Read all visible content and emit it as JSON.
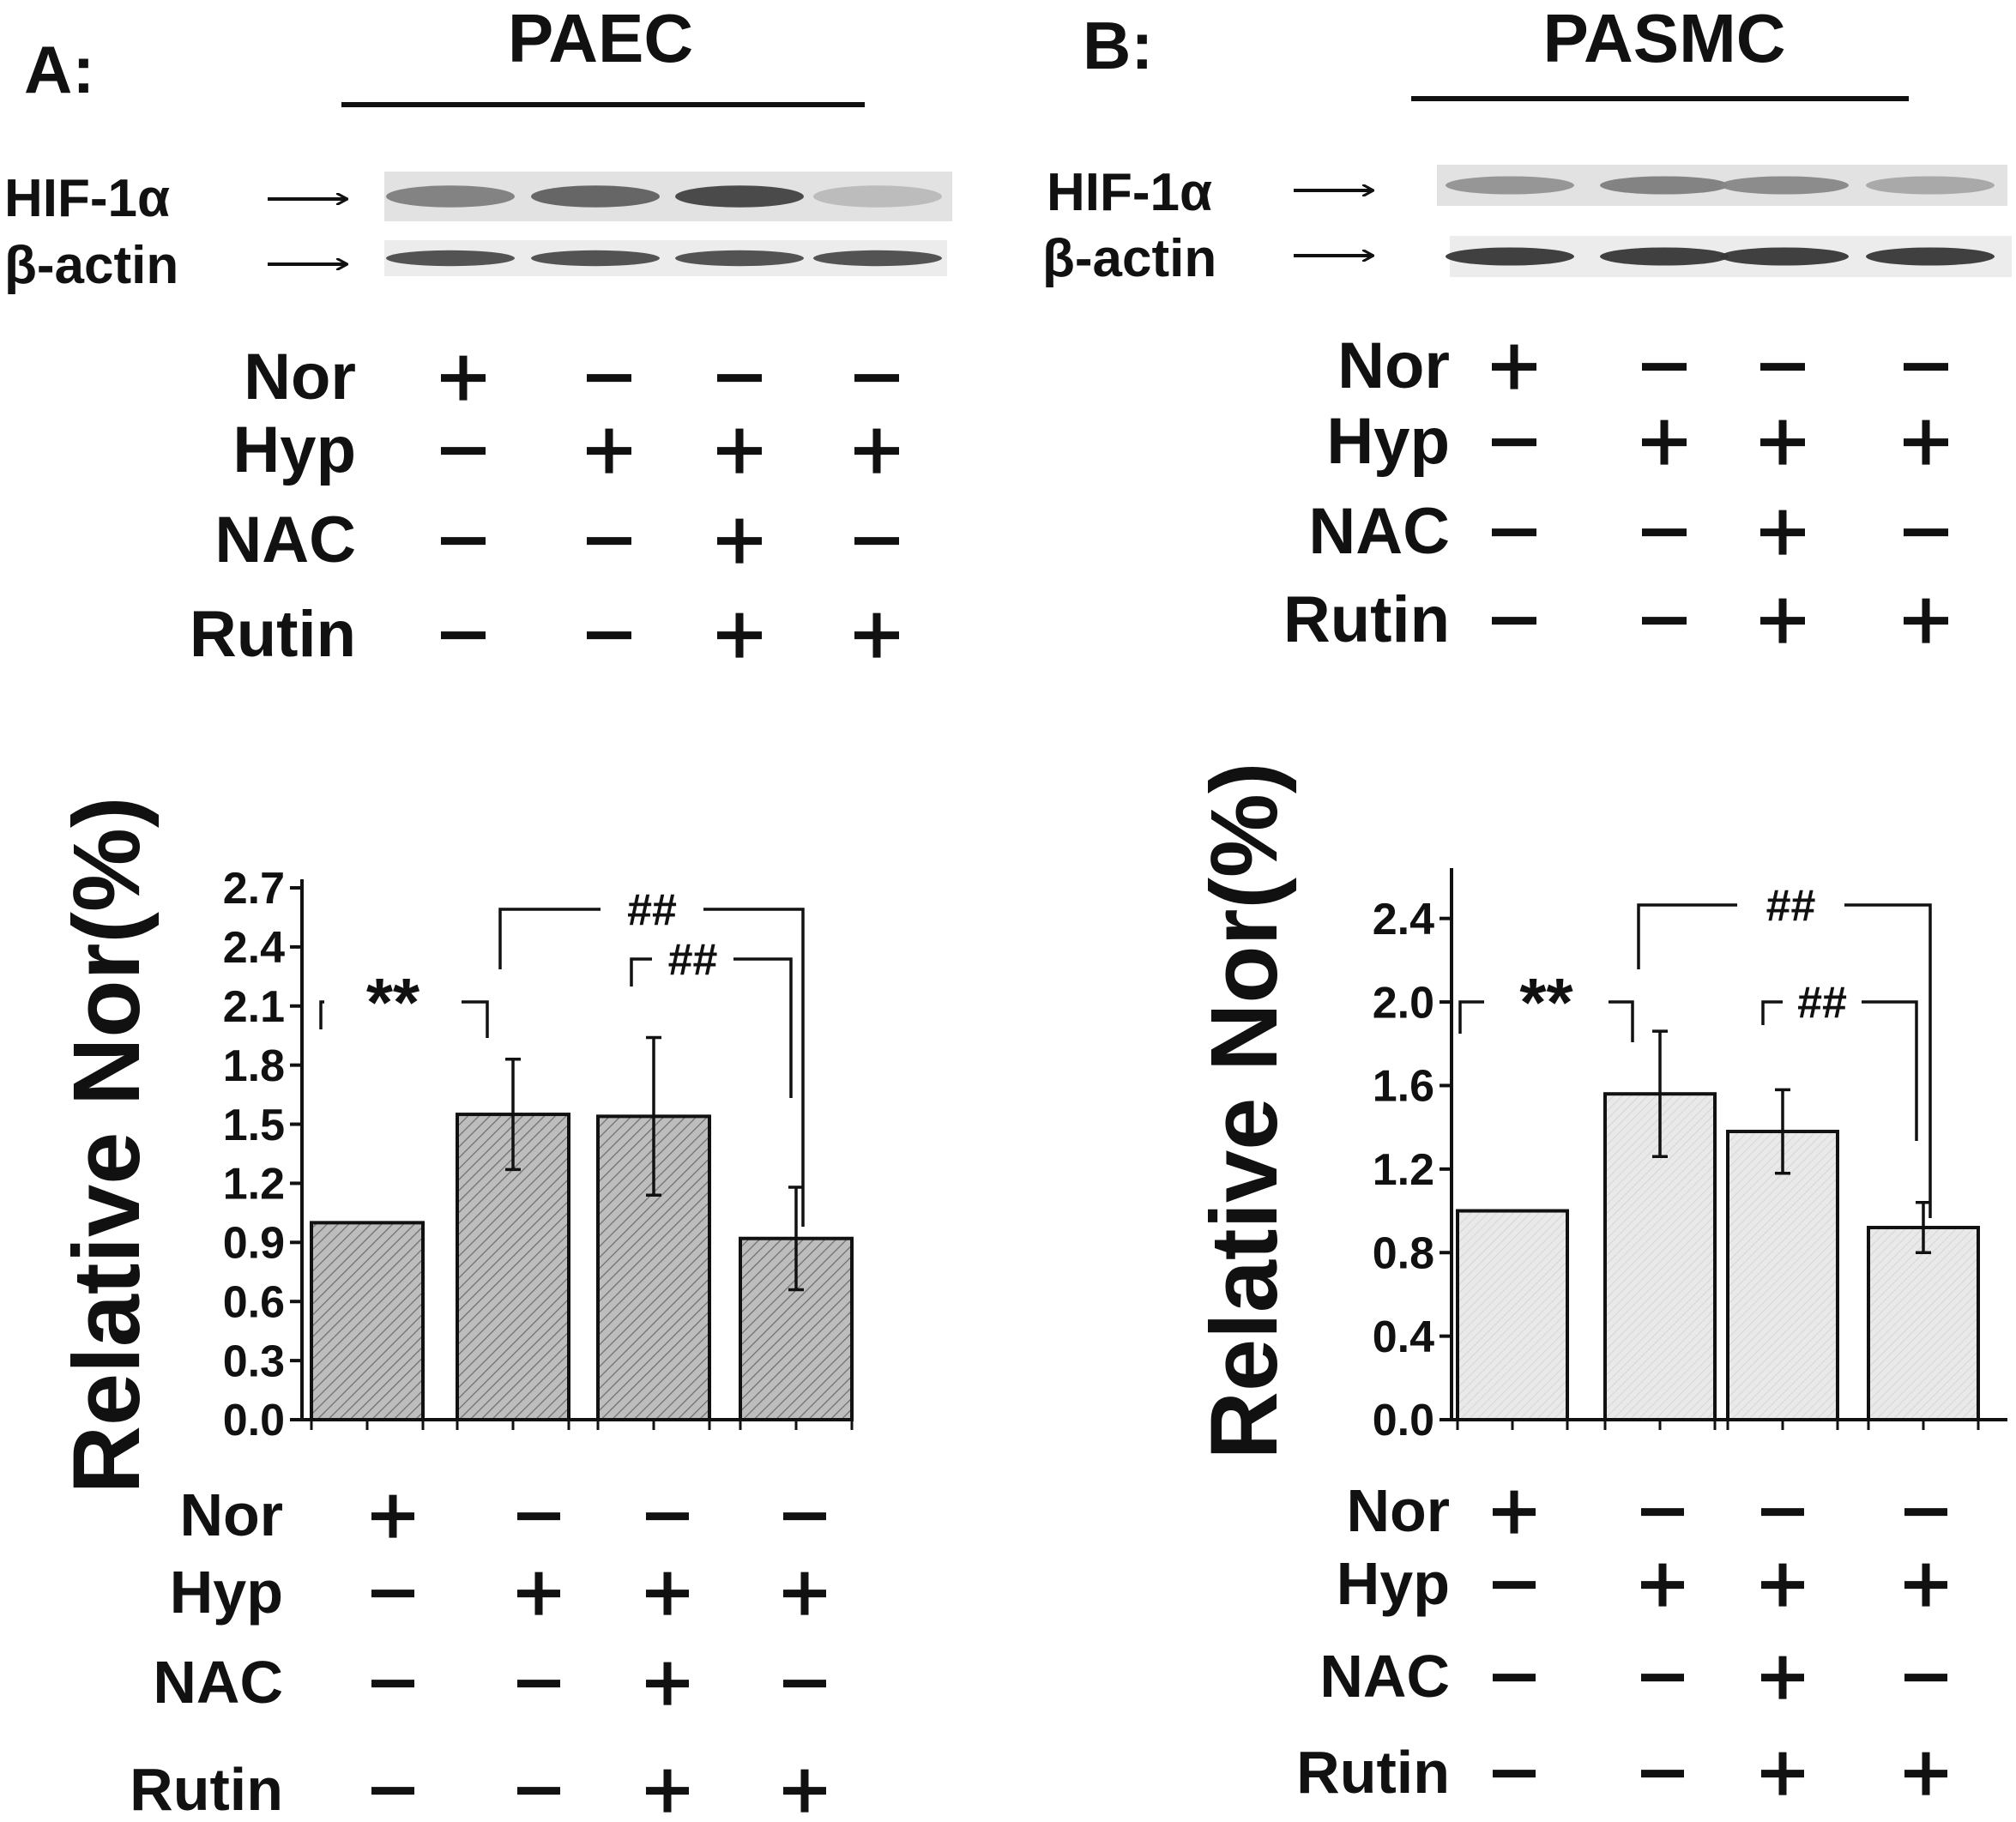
{
  "panels": [
    {
      "id": "A",
      "panel_label": "A:",
      "cell_type": "PAEC",
      "blot": {
        "bands": [
          {
            "label": "HIF-1α",
            "intensities": [
              0.55,
              0.7,
              0.85,
              0.25
            ]
          },
          {
            "label": "β-actin",
            "intensities": [
              0.8,
              0.8,
              0.8,
              0.8
            ]
          }
        ]
      },
      "conditions": [
        {
          "label": "Nor",
          "values": [
            "+",
            "-",
            "-",
            "-"
          ]
        },
        {
          "label": "Hyp",
          "values": [
            "-",
            "+",
            "+",
            "+"
          ]
        },
        {
          "label": "NAC",
          "values": [
            "-",
            "-",
            "+",
            "-"
          ]
        },
        {
          "label": "Rutin",
          "values": [
            "-",
            "-",
            "+",
            "+"
          ]
        }
      ],
      "significance": [
        {
          "from": 0,
          "to": 1,
          "text": "**"
        },
        {
          "from": 1,
          "to": 3,
          "text": "##"
        },
        {
          "from": 2,
          "to": 3,
          "text": "##"
        }
      ]
    },
    {
      "id": "B",
      "panel_label": "B:",
      "cell_type": "PASMC",
      "blot": {
        "bands": [
          {
            "label": "HIF-1α",
            "intensities": [
              0.45,
              0.55,
              0.5,
              0.35
            ]
          },
          {
            "label": "β-actin",
            "intensities": [
              0.9,
              0.9,
              0.9,
              0.9
            ]
          }
        ]
      },
      "conditions": [
        {
          "label": "Nor",
          "values": [
            "+",
            "-",
            "-",
            "-"
          ]
        },
        {
          "label": "Hyp",
          "values": [
            "-",
            "+",
            "+",
            "+"
          ]
        },
        {
          "label": "NAC",
          "values": [
            "-",
            "-",
            "+",
            "-"
          ]
        },
        {
          "label": "Rutin",
          "values": [
            "-",
            "-",
            "+",
            "+"
          ]
        }
      ],
      "significance": [
        {
          "from": 0,
          "to": 1,
          "text": "**"
        },
        {
          "from": 1,
          "to": 3,
          "text": "##"
        },
        {
          "from": 2,
          "to": 3,
          "text": "##"
        }
      ]
    }
  ],
  "chart_data": [
    {
      "type": "bar",
      "panel": "A",
      "ylabel": "Relative Nor(%)",
      "ylim": [
        0,
        2.7
      ],
      "yticks": [
        0.0,
        0.3,
        0.6,
        0.9,
        1.2,
        1.5,
        1.8,
        2.1,
        2.4,
        2.7
      ],
      "tick_decimals": 1,
      "categories": [
        "Nor+",
        "Hyp+",
        "Hyp+NAC+Rutin",
        "Hyp+Rutin"
      ],
      "values": [
        1.0,
        1.55,
        1.54,
        0.92
      ],
      "errors": [
        0.0,
        0.28,
        0.4,
        0.26
      ],
      "bar_color": "#b8b8b8",
      "hatch": true
    },
    {
      "type": "bar",
      "panel": "B",
      "ylabel": "Relative Nor(%)",
      "ylim": [
        0,
        2.6
      ],
      "yticks": [
        0.0,
        0.4,
        0.8,
        1.2,
        1.6,
        2.0,
        2.4
      ],
      "tick_decimals": 1,
      "categories": [
        "Nor+",
        "Hyp+",
        "Hyp+NAC+Rutin",
        "Hyp+Rutin"
      ],
      "values": [
        1.0,
        1.56,
        1.38,
        0.92
      ],
      "errors": [
        0.0,
        0.3,
        0.2,
        0.12
      ],
      "bar_color": "#e6e6e6",
      "hatch": false
    }
  ]
}
